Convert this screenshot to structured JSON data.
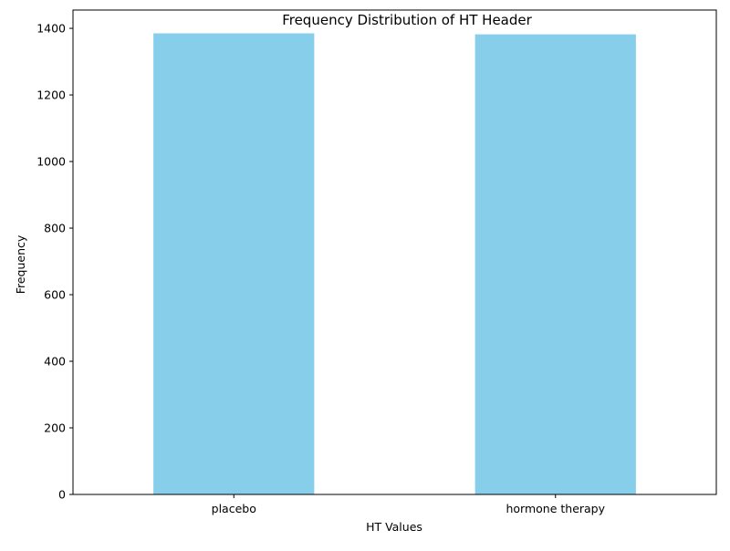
{
  "chart_data": {
    "type": "bar",
    "title": "Frequency Distribution of HT Header",
    "xlabel": "HT Values",
    "ylabel": "Frequency",
    "categories": [
      "placebo",
      "hormone therapy"
    ],
    "values": [
      1385,
      1382
    ],
    "ylim": [
      0,
      1455
    ],
    "yticks": [
      0,
      200,
      400,
      600,
      800,
      1000,
      1200,
      1400
    ],
    "bar_color": "#87CEEB",
    "grid": false,
    "legend": "none"
  }
}
